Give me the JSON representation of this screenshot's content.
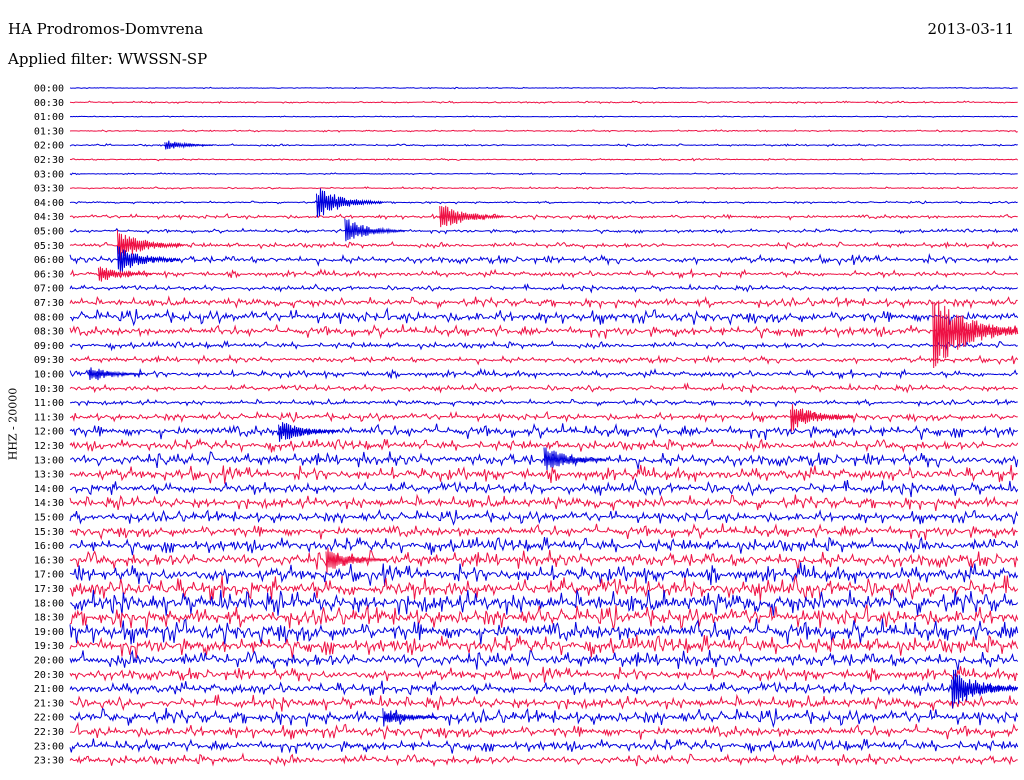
{
  "header": {
    "station": "HA Prodromos-Domvrena",
    "filter": "Applied filter: WWSSN-SP",
    "date": "2013-03-11"
  },
  "chart_data": {
    "type": "line",
    "title": "HA Prodromos-Domvrena",
    "subtitle": "Applied filter: WWSSN-SP",
    "date": "2013-03-11",
    "ylabel": "HHZ - 20000",
    "trace_row_minutes": 30,
    "tick_labels": [
      "00:00",
      "00:30",
      "01:00",
      "01:30",
      "02:00",
      "02:30",
      "03:00",
      "03:30",
      "04:00",
      "04:30",
      "05:00",
      "05:30",
      "06:00",
      "06:30",
      "07:00",
      "07:30",
      "08:00",
      "08:30",
      "09:00",
      "09:30",
      "10:00",
      "10:30",
      "11:00",
      "11:30",
      "12:00",
      "12:30",
      "13:00",
      "13:30",
      "14:00",
      "14:30",
      "15:00",
      "15:30",
      "16:00",
      "16:30",
      "17:00",
      "17:30",
      "18:00",
      "18:30",
      "19:00",
      "19:30",
      "20:00",
      "20:30",
      "21:00",
      "21:30",
      "22:00",
      "22:30",
      "23:00",
      "23:30"
    ],
    "colors": [
      "#0000dd",
      "#ee1144"
    ],
    "noise_level": [
      0.3,
      0.5,
      0.3,
      0.5,
      0.6,
      0.5,
      0.4,
      0.5,
      0.6,
      1.2,
      1.0,
      1.5,
      2.2,
      1.8,
      1.5,
      2.5,
      3.5,
      3.0,
      1.8,
      1.8,
      2.0,
      1.8,
      1.5,
      2.2,
      3.5,
      3.0,
      3.8,
      4.0,
      3.5,
      3.5,
      3.2,
      3.5,
      4.0,
      4.5,
      5.0,
      6.0,
      6.5,
      5.5,
      6.0,
      5.0,
      4.5,
      3.5,
      3.5,
      3.5,
      4.0,
      3.5,
      3.2,
      2.8
    ],
    "events": [
      {
        "time": "02:00",
        "amplitude": 6
      },
      {
        "time": "04:00",
        "amplitude": 18
      },
      {
        "time": "04:30",
        "amplitude": 16
      },
      {
        "time": "05:00",
        "amplitude": 14
      },
      {
        "time": "05:30",
        "amplitude": 18
      },
      {
        "time": "06:00",
        "amplitude": 16
      },
      {
        "time": "06:30",
        "amplitude": 10
      },
      {
        "time": "08:30",
        "amplitude": 40
      },
      {
        "time": "10:00",
        "amplitude": 10
      },
      {
        "time": "11:30",
        "amplitude": 16
      },
      {
        "time": "12:00",
        "amplitude": 14
      },
      {
        "time": "13:00",
        "amplitude": 15
      },
      {
        "time": "16:30",
        "amplitude": 14
      },
      {
        "time": "21:00",
        "amplitude": 22
      },
      {
        "time": "22:00",
        "amplitude": 10
      }
    ],
    "grid": false,
    "legend": "none"
  }
}
